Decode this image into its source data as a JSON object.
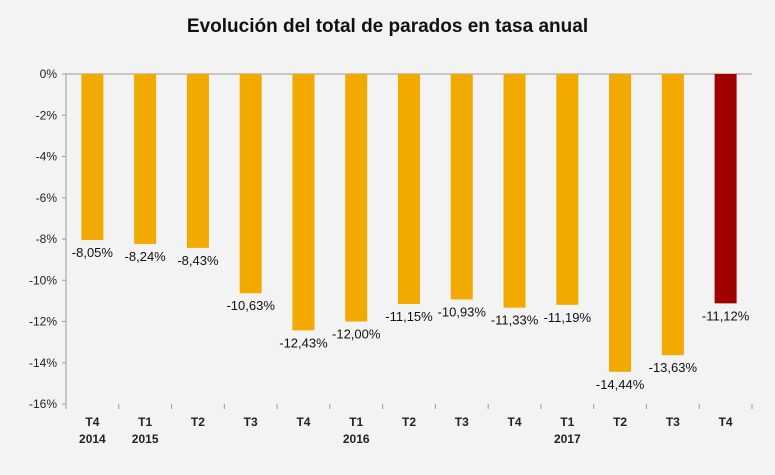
{
  "chart_data": {
    "type": "bar",
    "title": "Evolución del total de parados en tasa anual",
    "xlabel": "",
    "ylabel": "",
    "ylim": [
      -16,
      0
    ],
    "yticks": [
      0,
      -2,
      -4,
      -6,
      -8,
      -10,
      -12,
      -14,
      -16
    ],
    "ytick_labels": [
      "0%",
      "-2%",
      "-4%",
      "-6%",
      "-8%",
      "-10%",
      "-12%",
      "-14%",
      "-16%"
    ],
    "categories": [
      "T4",
      "T1",
      "T2",
      "T3",
      "T4",
      "T1",
      "T2",
      "T3",
      "T4",
      "T1",
      "T2",
      "T3",
      "T4"
    ],
    "year_labels": [
      "2014",
      "2015",
      "",
      "",
      "",
      "2016",
      "",
      "",
      "",
      "2017",
      "",
      "",
      ""
    ],
    "values": [
      -8.05,
      -8.24,
      -8.43,
      -10.63,
      -12.43,
      -12.0,
      -11.15,
      -10.93,
      -11.33,
      -11.19,
      -14.44,
      -13.63,
      -11.12
    ],
    "value_labels": [
      "-8,05%",
      "-8,24%",
      "-8,43%",
      "-10,63%",
      "-12,43%",
      "-12,00%",
      "-11,15%",
      "-10,93%",
      "-11,33%",
      "-11,19%",
      "-14,44%",
      "-13,63%",
      "-11,12%"
    ],
    "highlight_index": 12,
    "colors": {
      "bar": "#f2a900",
      "highlight": "#a00000",
      "axis": "#999999"
    },
    "grid": false,
    "legend": "none"
  }
}
